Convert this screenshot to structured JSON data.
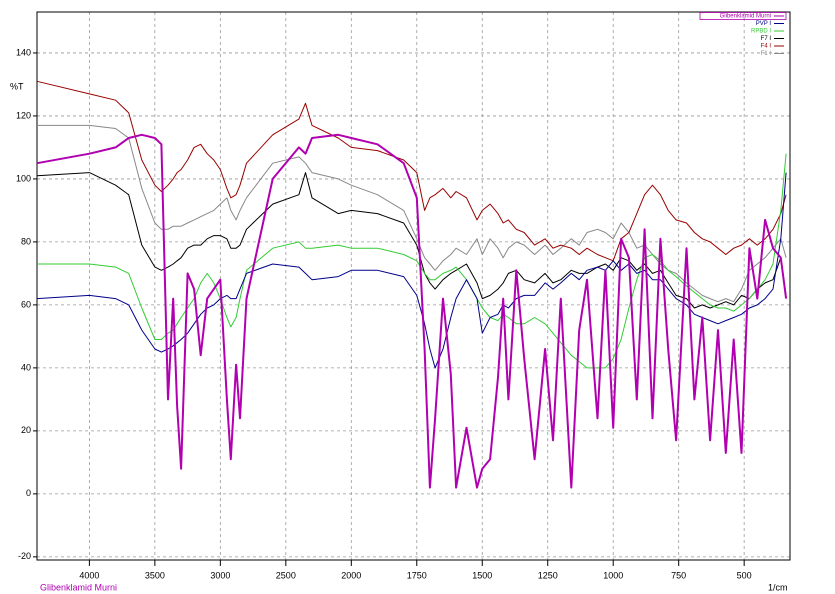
{
  "chart_data": {
    "type": "line",
    "y_label": "%T",
    "x_label": "1/cm",
    "footer_label": "Glibenklamid Murni",
    "xlim": [
      4400,
      325
    ],
    "x_scale_break": 2000,
    "ylim": [
      -21,
      153
    ],
    "xticks": [
      4000,
      3500,
      3000,
      2500,
      2000,
      1750,
      1500,
      1250,
      1000,
      750,
      500
    ],
    "yticks": [
      -20,
      0,
      20,
      40,
      60,
      80,
      100,
      120,
      140
    ],
    "grid": true,
    "legend": "top-right",
    "x": [
      4400,
      4000,
      3800,
      3700,
      3600,
      3500,
      3450,
      3400,
      3360,
      3330,
      3300,
      3250,
      3200,
      3150,
      3100,
      3050,
      3000,
      2950,
      2920,
      2880,
      2850,
      2800,
      2600,
      2400,
      2350,
      2300,
      2100,
      2000,
      1900,
      1800,
      1750,
      1720,
      1700,
      1680,
      1650,
      1620,
      1600,
      1560,
      1520,
      1500,
      1470,
      1440,
      1420,
      1400,
      1370,
      1340,
      1300,
      1260,
      1230,
      1200,
      1160,
      1130,
      1100,
      1060,
      1030,
      1000,
      970,
      940,
      910,
      880,
      850,
      820,
      790,
      760,
      720,
      690,
      660,
      630,
      600,
      570,
      540,
      510,
      480,
      450,
      420,
      390,
      360,
      340
    ],
    "series": [
      {
        "name": "Glibenklamid Murni",
        "color": "#b000b0",
        "values": [
          105,
          108,
          110,
          113,
          114,
          113,
          111,
          30,
          62,
          28,
          8,
          70,
          65,
          44,
          62,
          65,
          68,
          30,
          11,
          41,
          24,
          62,
          100,
          110,
          108,
          113,
          114,
          113,
          111,
          105,
          94,
          46,
          2,
          24,
          62,
          38,
          2,
          21,
          2,
          8,
          11,
          37,
          62,
          30,
          71,
          43,
          11,
          46,
          17,
          62,
          2,
          52,
          68,
          24,
          71,
          21,
          81,
          75,
          30,
          84,
          24,
          81,
          46,
          17,
          78,
          30,
          56,
          17,
          52,
          13,
          49,
          13,
          78,
          62,
          87,
          78,
          75,
          62
        ]
      },
      {
        "name": "PVP I",
        "color": "#00008b",
        "values": [
          62,
          63,
          62,
          60,
          52,
          46,
          45,
          46,
          47,
          48,
          49,
          51,
          54,
          57,
          59,
          60,
          62,
          63,
          62,
          62,
          65,
          70,
          73,
          72,
          70,
          68,
          69,
          71,
          71,
          69,
          63,
          54,
          46,
          40,
          46,
          56,
          62,
          68,
          62,
          51,
          56,
          57,
          60,
          59,
          62,
          63,
          63,
          67,
          65,
          67,
          70,
          68,
          71,
          72,
          71,
          74,
          71,
          73,
          70,
          71,
          68,
          68,
          65,
          62,
          60,
          57,
          56,
          55,
          54,
          55,
          56,
          57,
          59,
          60,
          62,
          65,
          81,
          102
        ]
      },
      {
        "name": "RPBD I",
        "color": "#33cc33",
        "values": [
          73,
          73,
          72,
          70,
          59,
          49,
          49,
          51,
          52,
          54,
          56,
          59,
          62,
          67,
          70,
          67,
          62,
          56,
          53,
          56,
          62,
          71,
          78,
          80,
          78,
          78,
          79,
          78,
          78,
          76,
          74,
          70,
          68,
          68,
          70,
          71,
          72,
          68,
          62,
          59,
          56,
          55,
          57,
          56,
          54,
          54,
          56,
          54,
          51,
          48,
          44,
          42,
          40,
          40,
          40,
          43,
          49,
          59,
          68,
          75,
          76,
          74,
          71,
          69,
          66,
          64,
          62,
          60,
          59,
          59,
          58,
          60,
          62,
          65,
          68,
          73,
          90,
          108
        ]
      },
      {
        "name": "F7 I",
        "color": "#000000",
        "values": [
          101,
          102,
          98,
          95,
          79,
          72,
          71,
          72,
          73,
          74,
          75,
          78,
          79,
          79,
          81,
          82,
          82,
          81,
          78,
          78,
          79,
          84,
          92,
          95,
          102,
          94,
          89,
          90,
          89,
          86,
          79,
          70,
          67,
          65,
          68,
          70,
          71,
          73,
          67,
          62,
          63,
          65,
          67,
          70,
          71,
          68,
          67,
          70,
          67,
          68,
          71,
          70,
          70,
          72,
          73,
          71,
          75,
          74,
          71,
          73,
          70,
          71,
          67,
          63,
          62,
          59,
          60,
          59,
          60,
          61,
          60,
          63,
          62,
          65,
          67,
          68,
          75,
          63
        ]
      },
      {
        "name": "F4 I",
        "color": "#990000",
        "values": [
          131,
          127,
          125,
          121,
          106,
          98,
          96,
          98,
          100,
          102,
          103,
          106,
          110,
          111,
          108,
          106,
          103,
          97,
          94,
          95,
          98,
          105,
          114,
          119,
          124,
          117,
          113,
          110,
          109,
          106,
          102,
          90,
          94,
          95,
          97,
          94,
          96,
          94,
          87,
          90,
          92,
          89,
          86,
          87,
          84,
          83,
          79,
          81,
          78,
          79,
          78,
          76,
          78,
          76,
          75,
          74,
          81,
          83,
          89,
          95,
          98,
          95,
          90,
          87,
          86,
          83,
          81,
          80,
          78,
          76,
          78,
          79,
          81,
          79,
          81,
          84,
          89,
          95
        ]
      },
      {
        "name": "F1 I",
        "color": "#888888",
        "values": [
          117,
          117,
          116,
          113,
          97,
          86,
          84,
          84,
          85,
          85,
          85,
          86,
          87,
          88,
          89,
          90,
          92,
          94,
          90,
          87,
          90,
          94,
          105,
          107,
          105,
          102,
          100,
          98,
          95,
          90,
          81,
          75,
          73,
          71,
          74,
          76,
          78,
          76,
          81,
          76,
          81,
          78,
          75,
          78,
          80,
          79,
          76,
          79,
          76,
          78,
          81,
          79,
          83,
          84,
          83,
          81,
          86,
          83,
          78,
          79,
          76,
          73,
          71,
          70,
          67,
          65,
          63,
          62,
          61,
          62,
          61,
          65,
          71,
          73,
          75,
          78,
          81,
          75
        ]
      }
    ]
  }
}
